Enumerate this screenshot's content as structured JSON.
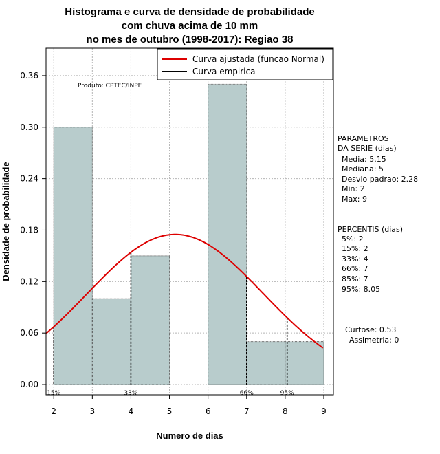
{
  "chart_data": {
    "type": "bar",
    "title_lines": [
      "Histograma e curva de densidade de probabilidade",
      "com chuva acima de 10 mm",
      "no mes de outubro (1998-2017): Regiao 38"
    ],
    "xlabel": "Numero de dias",
    "ylabel": "Densidade de probabilidade",
    "xlim": [
      1.8,
      9.25
    ],
    "ylim": [
      -0.012,
      0.392
    ],
    "x_ticks": [
      2,
      3,
      4,
      5,
      6,
      7,
      8,
      9
    ],
    "y_ticks": [
      0.0,
      0.06,
      0.12,
      0.18,
      0.24,
      0.3,
      0.36
    ],
    "y_tick_labels": [
      "0.00",
      "0.06",
      "0.12",
      "0.18",
      "0.24",
      "0.30",
      "0.36"
    ],
    "grid": true,
    "bar_color": "#b8cccc",
    "curve_color": "#dd0000",
    "bins": [
      {
        "start": 2,
        "end": 3,
        "value": 0.3
      },
      {
        "start": 3,
        "end": 4,
        "value": 0.1
      },
      {
        "start": 4,
        "end": 5,
        "value": 0.15
      },
      {
        "start": 5,
        "end": 6,
        "value": 0.0
      },
      {
        "start": 6,
        "end": 7,
        "value": 0.35
      },
      {
        "start": 7,
        "end": 8,
        "value": 0.05
      },
      {
        "start": 8,
        "end": 9,
        "value": 0.05
      }
    ],
    "normal_fit": {
      "mean": 5.15,
      "sd": 2.28
    },
    "percentile_markers": [
      {
        "x": 2,
        "label": "15%"
      },
      {
        "x": 4,
        "label": "33%"
      },
      {
        "x": 7,
        "label": "66%"
      },
      {
        "x": 8.05,
        "label": "95%"
      }
    ],
    "legend": {
      "position": "top-right",
      "entries": [
        {
          "label": "Curva ajustada (funcao Normal)",
          "color": "#dd0000"
        },
        {
          "label": "Curva empirica",
          "color": "#000000"
        }
      ]
    },
    "annotation": "Produto: CPTEC/INPE",
    "parametros": {
      "header": [
        "PARAMETROS",
        "DA SERIE (dias)"
      ],
      "lines": [
        "Media: 5.15",
        "Mediana: 5",
        "Desvio padrao: 2.28",
        "Min: 2",
        "Max: 9"
      ]
    },
    "percentis": {
      "header": "PERCENTIS (dias)",
      "lines": [
        "5%: 2",
        "15%: 2",
        "33%: 4",
        "66%: 7",
        "85%: 7",
        "95%: 8.05"
      ]
    },
    "shape": {
      "lines": [
        "Curtose: 0.53",
        "Assimetria: 0"
      ]
    }
  }
}
